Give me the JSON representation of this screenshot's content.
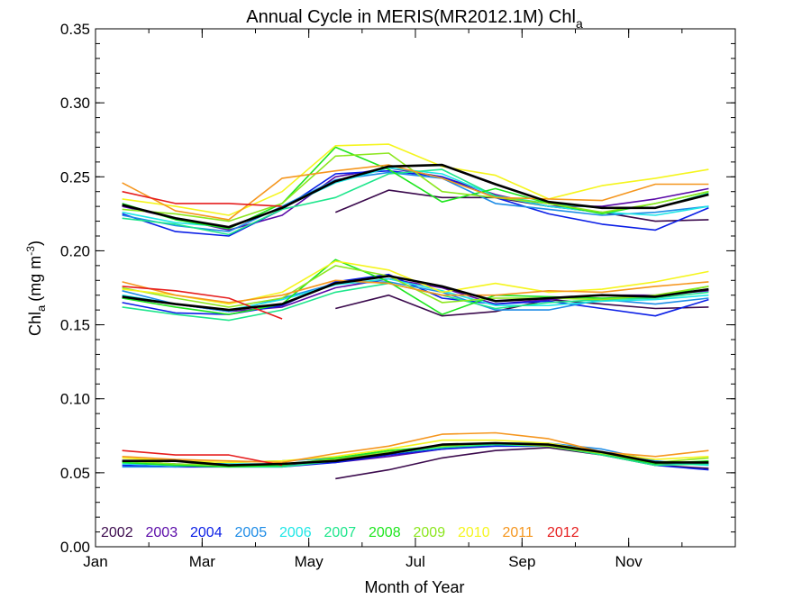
{
  "chart_data": {
    "type": "line",
    "title": "Annual Cycle in MERIS(MR2012.1M) Chl",
    "title_subscript": "a",
    "xlabel": "Month of Year",
    "ylabel_main": "Chl",
    "ylabel_subscript": "a",
    "ylabel_units_prefix": "(mg m",
    "ylabel_units_exponent": "-3",
    "ylabel_units_suffix": ")",
    "xlim": [
      1,
      13
    ],
    "ylim": [
      0.0,
      0.35
    ],
    "xticks": [
      {
        "value": 1,
        "label": "Jan"
      },
      {
        "value": 3,
        "label": "Mar"
      },
      {
        "value": 5,
        "label": "May"
      },
      {
        "value": 7,
        "label": "Jul"
      },
      {
        "value": 9,
        "label": "Sep"
      },
      {
        "value": 11,
        "label": "Nov"
      }
    ],
    "yticks": [
      {
        "value": 0.0,
        "label": "0.00"
      },
      {
        "value": 0.05,
        "label": "0.05"
      },
      {
        "value": 0.1,
        "label": "0.10"
      },
      {
        "value": 0.15,
        "label": "0.15"
      },
      {
        "value": 0.2,
        "label": "0.20"
      },
      {
        "value": 0.25,
        "label": "0.25"
      },
      {
        "value": 0.3,
        "label": "0.30"
      },
      {
        "value": 0.35,
        "label": "0.35"
      }
    ],
    "grid": false,
    "legend_position": "bottom-left",
    "months": [
      1.5,
      2.5,
      3.5,
      4.5,
      5.5,
      6.5,
      7.5,
      8.5,
      9.5,
      10.5,
      11.5,
      12.5
    ],
    "series": [
      {
        "name": "2002",
        "color": "#3b0a4d",
        "upper": [
          null,
          null,
          null,
          null,
          0.226,
          0.241,
          0.236,
          0.236,
          0.23,
          0.226,
          0.22,
          0.221
        ],
        "middle": [
          null,
          null,
          null,
          null,
          0.161,
          0.17,
          0.156,
          0.159,
          0.167,
          0.164,
          0.161,
          0.162
        ],
        "lower": [
          null,
          null,
          null,
          null,
          0.046,
          0.052,
          0.06,
          0.065,
          0.067,
          0.062,
          0.055,
          0.053
        ]
      },
      {
        "name": "2003",
        "color": "#5a0aa8",
        "upper": [
          0.23,
          0.222,
          0.214,
          0.224,
          0.25,
          0.256,
          0.25,
          0.238,
          0.23,
          0.23,
          0.235,
          0.242
        ],
        "middle": [
          0.168,
          0.164,
          0.159,
          0.162,
          0.175,
          0.181,
          0.175,
          0.164,
          0.167,
          0.17,
          0.17,
          0.173
        ],
        "lower": [
          0.058,
          0.056,
          0.055,
          0.055,
          0.057,
          0.061,
          0.066,
          0.069,
          0.069,
          0.063,
          0.056,
          0.056
        ]
      },
      {
        "name": "2004",
        "color": "#0a1ee6",
        "upper": [
          0.225,
          0.213,
          0.21,
          0.228,
          0.252,
          0.254,
          0.25,
          0.236,
          0.225,
          0.218,
          0.214,
          0.229
        ],
        "middle": [
          0.165,
          0.158,
          0.157,
          0.163,
          0.179,
          0.184,
          0.168,
          0.164,
          0.166,
          0.161,
          0.156,
          0.167
        ],
        "lower": [
          0.055,
          0.054,
          0.054,
          0.054,
          0.057,
          0.062,
          0.066,
          0.068,
          0.068,
          0.063,
          0.055,
          0.052
        ]
      },
      {
        "name": "2005",
        "color": "#1e8ce6",
        "upper": [
          0.224,
          0.217,
          0.213,
          0.23,
          0.248,
          0.253,
          0.249,
          0.232,
          0.228,
          0.224,
          0.226,
          0.23
        ],
        "middle": [
          0.173,
          0.164,
          0.159,
          0.168,
          0.178,
          0.179,
          0.172,
          0.16,
          0.16,
          0.167,
          0.164,
          0.168
        ],
        "lower": [
          0.054,
          0.054,
          0.057,
          0.058,
          0.06,
          0.064,
          0.068,
          0.07,
          0.07,
          0.066,
          0.058,
          0.055
        ]
      },
      {
        "name": "2006",
        "color": "#1ee6e6",
        "upper": [
          0.226,
          0.219,
          0.216,
          0.229,
          0.246,
          0.256,
          0.252,
          0.237,
          0.23,
          0.226,
          0.224,
          0.23
        ],
        "middle": [
          0.17,
          0.164,
          0.16,
          0.167,
          0.177,
          0.181,
          0.173,
          0.163,
          0.163,
          0.166,
          0.167,
          0.17
        ],
        "lower": [
          0.056,
          0.055,
          0.056,
          0.056,
          0.059,
          0.063,
          0.068,
          0.07,
          0.069,
          0.064,
          0.057,
          0.055
        ]
      },
      {
        "name": "2007",
        "color": "#1ee68c",
        "upper": [
          0.222,
          0.218,
          0.211,
          0.228,
          0.236,
          0.252,
          0.255,
          0.237,
          0.232,
          0.229,
          0.229,
          0.239
        ],
        "middle": [
          0.162,
          0.157,
          0.153,
          0.16,
          0.172,
          0.178,
          0.17,
          0.161,
          0.165,
          0.167,
          0.168,
          0.172
        ],
        "lower": [
          0.057,
          0.055,
          0.054,
          0.054,
          0.058,
          0.063,
          0.067,
          0.069,
          0.068,
          0.062,
          0.055,
          0.056
        ]
      },
      {
        "name": "2008",
        "color": "#1ee61e",
        "upper": [
          0.232,
          0.221,
          0.215,
          0.232,
          0.27,
          0.255,
          0.233,
          0.242,
          0.232,
          0.225,
          0.232,
          0.24
        ],
        "middle": [
          0.168,
          0.162,
          0.157,
          0.164,
          0.194,
          0.179,
          0.157,
          0.17,
          0.169,
          0.168,
          0.169,
          0.176
        ],
        "lower": [
          0.057,
          0.055,
          0.054,
          0.055,
          0.06,
          0.065,
          0.068,
          0.07,
          0.069,
          0.063,
          0.056,
          0.058
        ]
      },
      {
        "name": "2009",
        "color": "#8ce61e",
        "upper": [
          0.228,
          0.225,
          0.22,
          0.232,
          0.264,
          0.266,
          0.24,
          0.236,
          0.232,
          0.226,
          0.232,
          0.24
        ],
        "middle": [
          0.175,
          0.168,
          0.162,
          0.168,
          0.19,
          0.183,
          0.165,
          0.168,
          0.168,
          0.167,
          0.17,
          0.176
        ],
        "lower": [
          0.058,
          0.056,
          0.055,
          0.056,
          0.059,
          0.064,
          0.068,
          0.07,
          0.068,
          0.063,
          0.057,
          0.06
        ]
      },
      {
        "name": "2010",
        "color": "#f5f51e",
        "upper": [
          0.235,
          0.23,
          0.224,
          0.24,
          0.271,
          0.272,
          0.257,
          0.251,
          0.235,
          0.244,
          0.249,
          0.255
        ],
        "middle": [
          0.174,
          0.17,
          0.164,
          0.172,
          0.193,
          0.187,
          0.172,
          0.178,
          0.172,
          0.174,
          0.179,
          0.186
        ],
        "lower": [
          0.06,
          0.058,
          0.057,
          0.058,
          0.061,
          0.066,
          0.072,
          0.072,
          0.07,
          0.064,
          0.059,
          0.061
        ]
      },
      {
        "name": "2011",
        "color": "#f5961e",
        "upper": [
          0.246,
          0.227,
          0.221,
          0.249,
          0.254,
          0.258,
          0.249,
          0.236,
          0.235,
          0.234,
          0.245,
          0.245
        ],
        "middle": [
          0.179,
          0.17,
          0.165,
          0.17,
          0.18,
          0.178,
          0.17,
          0.17,
          0.173,
          0.172,
          0.176,
          0.179
        ],
        "lower": [
          0.061,
          0.059,
          0.058,
          0.057,
          0.063,
          0.068,
          0.076,
          0.077,
          0.073,
          0.064,
          0.061,
          0.065
        ]
      },
      {
        "name": "2012",
        "color": "#e61e1e",
        "upper": [
          0.24,
          0.232,
          0.232,
          0.23,
          null,
          null,
          null,
          null,
          null,
          null,
          null,
          null
        ],
        "middle": [
          0.176,
          0.173,
          0.168,
          0.154,
          null,
          null,
          null,
          null,
          null,
          null,
          null,
          null
        ],
        "lower": [
          0.065,
          0.062,
          0.062,
          0.055,
          null,
          null,
          null,
          null,
          null,
          null,
          null,
          null
        ]
      },
      {
        "name": "",
        "color": "#000000",
        "upper": [
          0.231,
          0.222,
          0.216,
          0.229,
          0.247,
          0.257,
          0.258,
          0.245,
          0.233,
          0.229,
          0.229,
          0.238
        ],
        "middle": [
          0.169,
          0.164,
          0.16,
          0.164,
          0.178,
          0.183,
          0.176,
          0.166,
          0.168,
          0.17,
          0.169,
          0.174
        ],
        "lower": [
          0.058,
          0.058,
          0.055,
          0.056,
          0.058,
          0.063,
          0.069,
          0.07,
          0.069,
          0.064,
          0.057,
          0.057
        ]
      }
    ]
  }
}
